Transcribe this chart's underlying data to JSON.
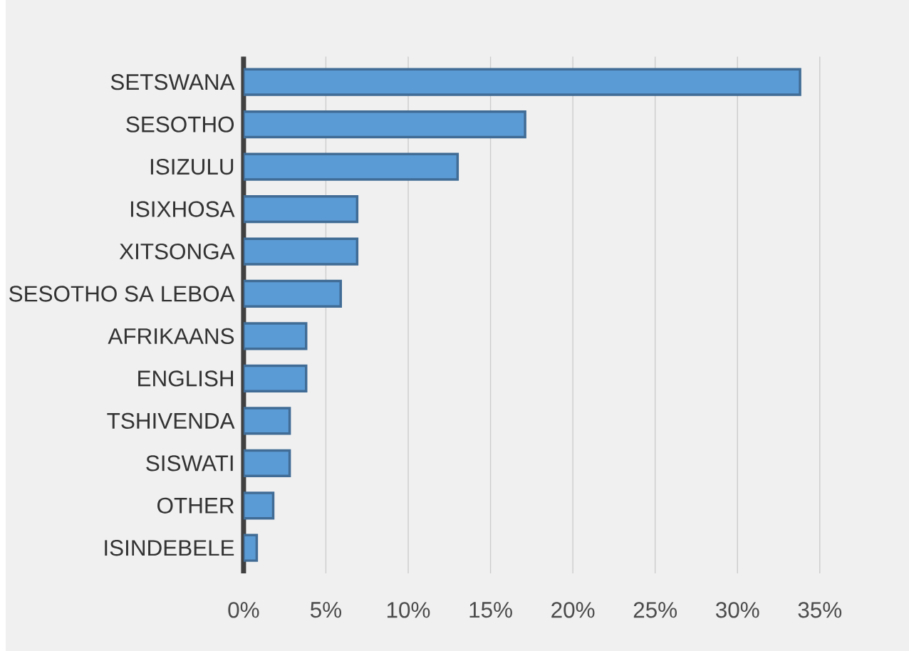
{
  "chart_data": {
    "type": "bar",
    "orientation": "horizontal",
    "categories": [
      "SETSWANA",
      "SESOTHO",
      "ISIZULU",
      "ISIXHOSA",
      "XITSONGA",
      "SESOTHO SA LEBOA",
      "AFRIKAANS",
      "ENGLISH",
      "TSHIVENDA",
      "SISWATI",
      "OTHER",
      "ISINDEBELE"
    ],
    "values": [
      33.8,
      17.1,
      13.0,
      6.9,
      6.9,
      5.9,
      3.8,
      3.8,
      2.8,
      2.8,
      1.8,
      0.8
    ],
    "color": "#5b9bd5",
    "xlim": [
      0,
      35
    ],
    "xticks": [
      {
        "value": 0,
        "label": "0%"
      },
      {
        "value": 5,
        "label": "5%"
      },
      {
        "value": 10,
        "label": "10%"
      },
      {
        "value": 15,
        "label": "15%"
      },
      {
        "value": 20,
        "label": "20%"
      },
      {
        "value": 25,
        "label": "25%"
      },
      {
        "value": 30,
        "label": "30%"
      },
      {
        "value": 35,
        "label": "35%"
      }
    ],
    "grid": "x"
  }
}
